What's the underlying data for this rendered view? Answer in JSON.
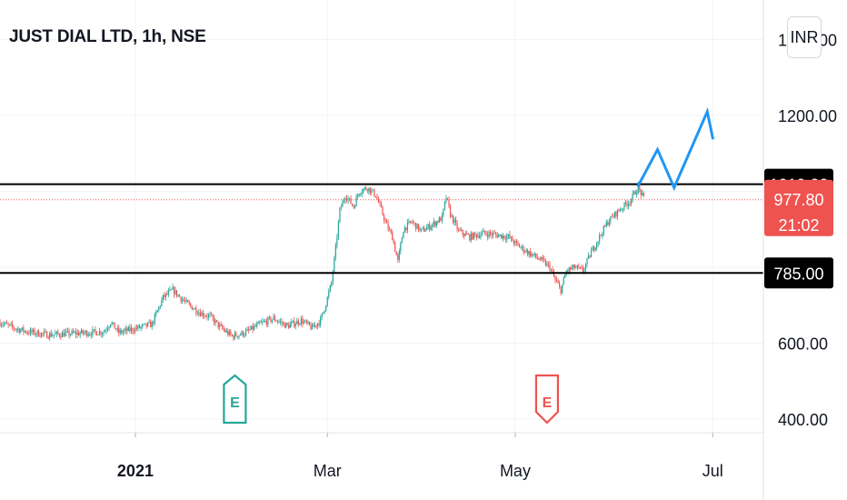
{
  "header": {
    "symbol_title": "JUST DIAL LTD, 1h, NSE",
    "currency": "INR"
  },
  "colors": {
    "up": "#26a69a",
    "down": "#ef5350",
    "level_line": "#000000",
    "last_price": "#ef5350",
    "projection": "#2196f3",
    "grid": "#f0f3fa",
    "text": "#131722"
  },
  "chart_data": {
    "type": "candlestick",
    "x_ticks": [
      {
        "label": "2021",
        "bold": true,
        "index": 98
      },
      {
        "label": "Mar",
        "bold": false,
        "index": 237
      },
      {
        "label": "May",
        "bold": false,
        "index": 373
      },
      {
        "label": "Jul",
        "bold": false,
        "index": 516
      }
    ],
    "y_ticks": [
      "1400.00",
      "1200.00",
      "600.00",
      "400.00"
    ],
    "ylim": [
      350,
      1480
    ],
    "horizontal_levels": [
      {
        "value": 1019,
        "label": "1019.00"
      },
      {
        "value": 785,
        "label": "785.00"
      }
    ],
    "last_price": {
      "value": 977.8,
      "label": "977.80",
      "countdown": "21:02"
    },
    "price_path": [
      [
        0,
        655
      ],
      [
        10,
        640
      ],
      [
        20,
        630
      ],
      [
        35,
        622
      ],
      [
        50,
        625
      ],
      [
        65,
        628
      ],
      [
        75,
        630
      ],
      [
        80,
        655
      ],
      [
        86,
        628
      ],
      [
        100,
        640
      ],
      [
        110,
        650
      ],
      [
        118,
        720
      ],
      [
        125,
        740
      ],
      [
        135,
        705
      ],
      [
        145,
        680
      ],
      [
        152,
        670
      ],
      [
        160,
        640
      ],
      [
        168,
        618
      ],
      [
        178,
        628
      ],
      [
        188,
        650
      ],
      [
        198,
        665
      ],
      [
        208,
        645
      ],
      [
        218,
        660
      ],
      [
        226,
        640
      ],
      [
        232,
        660
      ],
      [
        236,
        705
      ],
      [
        240,
        760
      ],
      [
        243,
        850
      ],
      [
        246,
        950
      ],
      [
        250,
        990
      ],
      [
        256,
        960
      ],
      [
        260,
        1000
      ],
      [
        266,
        1010
      ],
      [
        272,
        990
      ],
      [
        276,
        950
      ],
      [
        280,
        910
      ],
      [
        284,
        880
      ],
      [
        288,
        815
      ],
      [
        292,
        900
      ],
      [
        298,
        920
      ],
      [
        305,
        895
      ],
      [
        312,
        910
      ],
      [
        320,
        930
      ],
      [
        323,
        985
      ],
      [
        326,
        940
      ],
      [
        332,
        895
      ],
      [
        340,
        880
      ],
      [
        350,
        890
      ],
      [
        360,
        885
      ],
      [
        368,
        880
      ],
      [
        374,
        860
      ],
      [
        382,
        840
      ],
      [
        392,
        818
      ],
      [
        398,
        800
      ],
      [
        402,
        765
      ],
      [
        406,
        740
      ],
      [
        410,
        790
      ],
      [
        416,
        800
      ],
      [
        422,
        790
      ],
      [
        428,
        840
      ],
      [
        434,
        880
      ],
      [
        440,
        920
      ],
      [
        448,
        950
      ],
      [
        456,
        975
      ],
      [
        462,
        1010
      ],
      [
        466,
        980
      ]
    ],
    "earnings_markers": [
      {
        "label": "E",
        "index": 170,
        "type": "past"
      },
      {
        "label": "E",
        "index": 396,
        "type": "upcoming"
      }
    ],
    "projection_path": [
      {
        "index": 462,
        "value": 1015
      },
      {
        "index": 476,
        "value": 1110
      },
      {
        "index": 488,
        "value": 1010
      },
      {
        "index": 512,
        "value": 1210
      },
      {
        "index": 516,
        "value": 1140
      }
    ]
  }
}
